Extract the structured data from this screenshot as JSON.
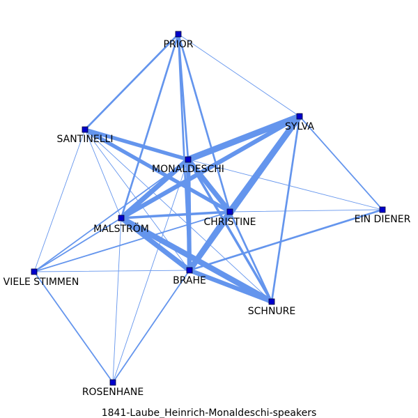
{
  "caption": "1841-Laube_Heinrich-Monaldeschi-speakers",
  "colors": {
    "edge": "#6495ed",
    "node": "#0000cc"
  },
  "nodes": [
    {
      "id": "PRIOR",
      "label": "PRIOR"
    },
    {
      "id": "SYLVA",
      "label": "SYLVA"
    },
    {
      "id": "SANTINELLI",
      "label": "SANTINELLI"
    },
    {
      "id": "MONALDESCHI",
      "label": "MONALDESCHI"
    },
    {
      "id": "CHRISTINE",
      "label": "CHRISTINE"
    },
    {
      "id": "EIN_DIENER",
      "label": "EIN DIENER"
    },
    {
      "id": "MALSTROM",
      "label": "MALSTRÖM"
    },
    {
      "id": "VIELE_STIMMEN",
      "label": "VIELE STIMMEN"
    },
    {
      "id": "BRAHE",
      "label": "BRAHE"
    },
    {
      "id": "SCHNURE",
      "label": "SCHNURE"
    },
    {
      "id": "ROSENHANE",
      "label": "ROSENHANE"
    }
  ],
  "edges": [
    {
      "source": "PRIOR",
      "target": "SANTINELLI",
      "weight": 3
    },
    {
      "source": "PRIOR",
      "target": "SYLVA",
      "weight": 1
    },
    {
      "source": "PRIOR",
      "target": "MONALDESCHI",
      "weight": 3
    },
    {
      "source": "PRIOR",
      "target": "MALSTROM",
      "weight": 3
    },
    {
      "source": "PRIOR",
      "target": "CHRISTINE",
      "weight": 3
    },
    {
      "source": "PRIOR",
      "target": "BRAHE",
      "weight": 3
    },
    {
      "source": "SYLVA",
      "target": "MONALDESCHI",
      "weight": 10
    },
    {
      "source": "SYLVA",
      "target": "MALSTROM",
      "weight": 7
    },
    {
      "source": "SYLVA",
      "target": "CHRISTINE",
      "weight": 10
    },
    {
      "source": "SYLVA",
      "target": "BRAHE",
      "weight": 9
    },
    {
      "source": "SYLVA",
      "target": "SCHNURE",
      "weight": 3
    },
    {
      "source": "SYLVA",
      "target": "EIN_DIENER",
      "weight": 2
    },
    {
      "source": "SANTINELLI",
      "target": "MONALDESCHI",
      "weight": 6
    },
    {
      "source": "SANTINELLI",
      "target": "CHRISTINE",
      "weight": 6
    },
    {
      "source": "SANTINELLI",
      "target": "MALSTROM",
      "weight": 1
    },
    {
      "source": "SANTINELLI",
      "target": "BRAHE",
      "weight": 1
    },
    {
      "source": "SANTINELLI",
      "target": "SCHNURE",
      "weight": 1
    },
    {
      "source": "SANTINELLI",
      "target": "VIELE_STIMMEN",
      "weight": 1
    },
    {
      "source": "MONALDESCHI",
      "target": "MALSTROM",
      "weight": 8
    },
    {
      "source": "MONALDESCHI",
      "target": "CHRISTINE",
      "weight": 8
    },
    {
      "source": "MONALDESCHI",
      "target": "BRAHE",
      "weight": 7
    },
    {
      "source": "MONALDESCHI",
      "target": "SCHNURE",
      "weight": 4
    },
    {
      "source": "MONALDESCHI",
      "target": "EIN_DIENER",
      "weight": 1
    },
    {
      "source": "MONALDESCHI",
      "target": "VIELE_STIMMEN",
      "weight": 2
    },
    {
      "source": "MONALDESCHI",
      "target": "ROSENHANE",
      "weight": 1
    },
    {
      "source": "MALSTROM",
      "target": "CHRISTINE",
      "weight": 4
    },
    {
      "source": "MALSTROM",
      "target": "BRAHE",
      "weight": 8
    },
    {
      "source": "MALSTROM",
      "target": "SCHNURE",
      "weight": 9
    },
    {
      "source": "MALSTROM",
      "target": "VIELE_STIMMEN",
      "weight": 2
    },
    {
      "source": "MALSTROM",
      "target": "ROSENHANE",
      "weight": 1
    },
    {
      "source": "CHRISTINE",
      "target": "BRAHE",
      "weight": 9
    },
    {
      "source": "CHRISTINE",
      "target": "SCHNURE",
      "weight": 3
    },
    {
      "source": "CHRISTINE",
      "target": "VIELE_STIMMEN",
      "weight": 2
    },
    {
      "source": "CHRISTINE",
      "target": "EIN_DIENER",
      "weight": 1
    },
    {
      "source": "BRAHE",
      "target": "SCHNURE",
      "weight": 7
    },
    {
      "source": "BRAHE",
      "target": "VIELE_STIMMEN",
      "weight": 1
    },
    {
      "source": "BRAHE",
      "target": "ROSENHANE",
      "weight": 2
    },
    {
      "source": "BRAHE",
      "target": "EIN_DIENER",
      "weight": 3
    },
    {
      "source": "VIELE_STIMMEN",
      "target": "ROSENHANE",
      "weight": 2
    }
  ]
}
